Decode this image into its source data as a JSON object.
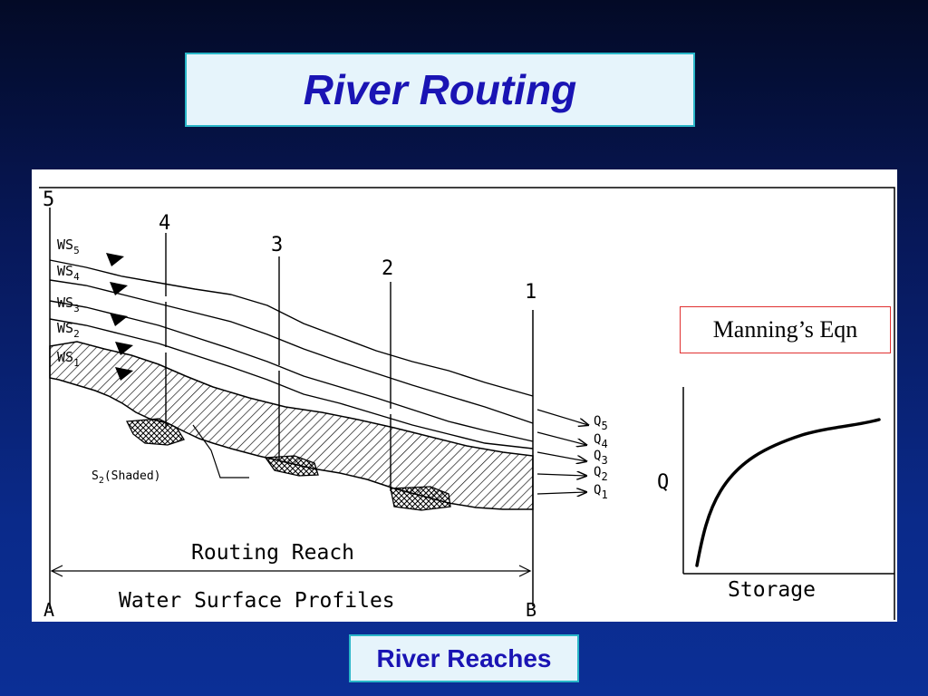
{
  "slide": {
    "title": "River Routing",
    "caption": "River Reaches",
    "manning_label": "Manning’s Eqn"
  },
  "profile_diagram": {
    "section_labels": [
      "5",
      "4",
      "3",
      "2",
      "1"
    ],
    "water_surface_labels": [
      {
        "base": "WS",
        "sub": "5"
      },
      {
        "base": "WS",
        "sub": "4"
      },
      {
        "base": "WS",
        "sub": "3"
      },
      {
        "base": "WS",
        "sub": "2"
      },
      {
        "base": "WS",
        "sub": "1"
      }
    ],
    "flow_labels": [
      {
        "base": "Q",
        "sub": "5"
      },
      {
        "base": "Q",
        "sub": "4"
      },
      {
        "base": "Q",
        "sub": "3"
      },
      {
        "base": "Q",
        "sub": "2"
      },
      {
        "base": "Q",
        "sub": "1"
      }
    ],
    "shaded_label": {
      "base": "S",
      "sub": "2",
      "rest": "(Shaded)"
    },
    "reach_label": "Routing Reach",
    "profiles_label": "Water Surface Profiles",
    "end_label_a": "A",
    "end_label_b": "B"
  },
  "rating_curve": {
    "y_label": "Q",
    "x_label": "Storage"
  }
}
